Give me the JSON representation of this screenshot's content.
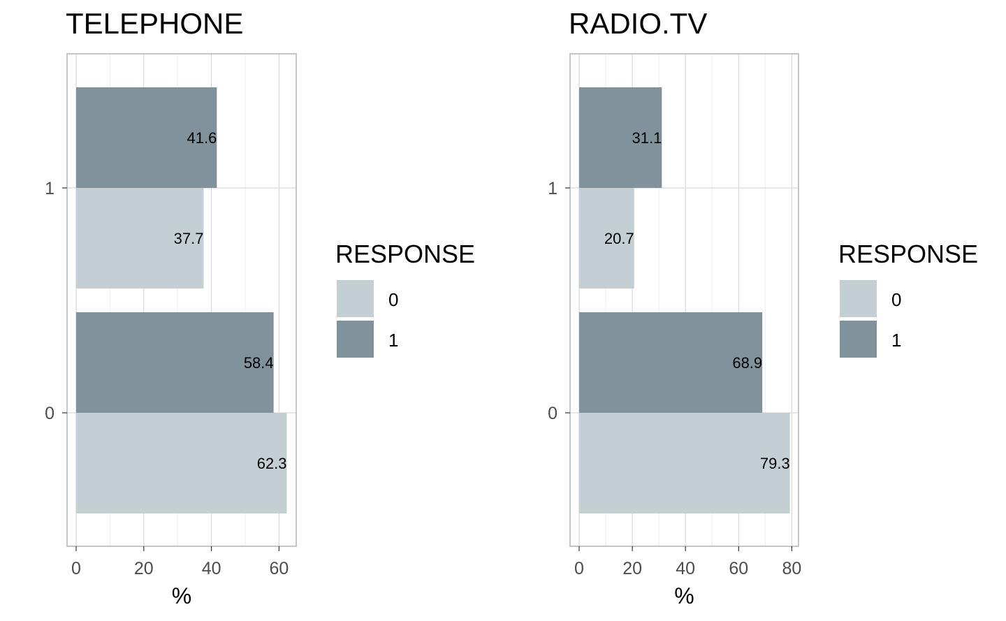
{
  "chart_data": [
    {
      "type": "bar",
      "orientation": "horizontal",
      "title": "TELEPHONE",
      "xlabel": "%",
      "ylabel": "",
      "categories": [
        "0",
        "1"
      ],
      "series": [
        {
          "name": "0",
          "values": [
            62.3,
            37.7
          ],
          "labels": [
            "62.3",
            "37.7"
          ]
        },
        {
          "name": "1",
          "values": [
            58.4,
            41.6
          ],
          "labels": [
            "58.4",
            "41.6"
          ]
        }
      ],
      "xlim": [
        0,
        65
      ],
      "x_ticks": [
        0,
        20,
        40,
        60
      ],
      "x_tick_labels": [
        "0",
        "20",
        "40",
        "60"
      ],
      "grid": true,
      "legend": {
        "title": "RESPONSE",
        "placement": "right",
        "entries": [
          "0",
          "1"
        ]
      }
    },
    {
      "type": "bar",
      "orientation": "horizontal",
      "title": "RADIO.TV",
      "xlabel": "%",
      "ylabel": "",
      "categories": [
        "0",
        "1"
      ],
      "series": [
        {
          "name": "0",
          "values": [
            79.3,
            20.7
          ],
          "labels": [
            "79.3",
            "20.7"
          ]
        },
        {
          "name": "1",
          "values": [
            68.9,
            31.1
          ],
          "labels": [
            "68.9",
            "31.1"
          ]
        }
      ],
      "xlim": [
        0,
        82
      ],
      "x_ticks": [
        0,
        20,
        40,
        60,
        80
      ],
      "x_tick_labels": [
        "0",
        "20",
        "40",
        "60",
        "80"
      ],
      "grid": true,
      "legend": {
        "title": "RESPONSE",
        "placement": "right",
        "entries": [
          "0",
          "1"
        ]
      }
    }
  ],
  "colors": {
    "response_0": "#c4cfd4",
    "response_1": "#80939d",
    "panel_border": "#b3b3b3",
    "grid_major": "#d9d9d9",
    "grid_minor": "#ececec",
    "tick_text": "#4d4d4d"
  }
}
